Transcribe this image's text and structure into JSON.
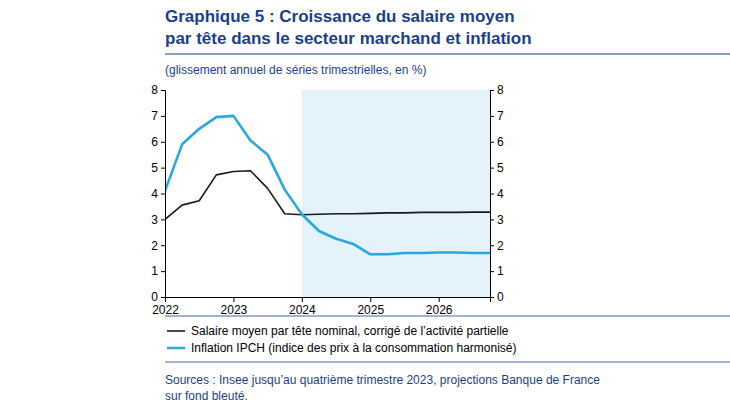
{
  "chart_data": {
    "type": "line",
    "title": [
      "Graphique 5 : Croissance du salaire moyen",
      "par tête dans le secteur marchand et inflation"
    ],
    "subtitle": "(glissement annuel de séries trimestrielles, en %)",
    "source": [
      "Sources : Insee jusqu’au quatrième trimestre 2023, projections Banque de France",
      "sur fond bleuté."
    ],
    "x": [
      2022,
      2022.25,
      2022.5,
      2022.75,
      2023,
      2023.25,
      2023.5,
      2023.75,
      2024,
      2024.25,
      2024.5,
      2024.75,
      2025,
      2025.25,
      2025.5,
      2025.75,
      2026,
      2026.25,
      2026.5,
      2026.75
    ],
    "xlim": [
      2022,
      2026.75
    ],
    "xticks": [
      2022,
      2023,
      2024,
      2025,
      2026
    ],
    "ylim": [
      0,
      8
    ],
    "yticks": [
      0,
      1,
      2,
      3,
      4,
      5,
      6,
      7,
      8
    ],
    "projection_start": 2024,
    "grid": false,
    "series": [
      {
        "name": "Salaire moyen par tête nominal, corrigé de l’activité partielle",
        "color": "#1a1a1a",
        "values": [
          3.0,
          3.55,
          3.72,
          4.72,
          4.85,
          4.88,
          4.2,
          3.22,
          3.18,
          3.2,
          3.22,
          3.22,
          3.23,
          3.25,
          3.25,
          3.27,
          3.27,
          3.27,
          3.28,
          3.28
        ]
      },
      {
        "name": "Inflation IPCH (indice des prix à la consommation harmonisé)",
        "color": "#29a8e0",
        "values": [
          4.1,
          5.9,
          6.5,
          6.95,
          7.0,
          6.05,
          5.5,
          4.15,
          3.2,
          2.55,
          2.25,
          2.05,
          1.65,
          1.65,
          1.7,
          1.7,
          1.72,
          1.72,
          1.7,
          1.7
        ]
      }
    ]
  }
}
